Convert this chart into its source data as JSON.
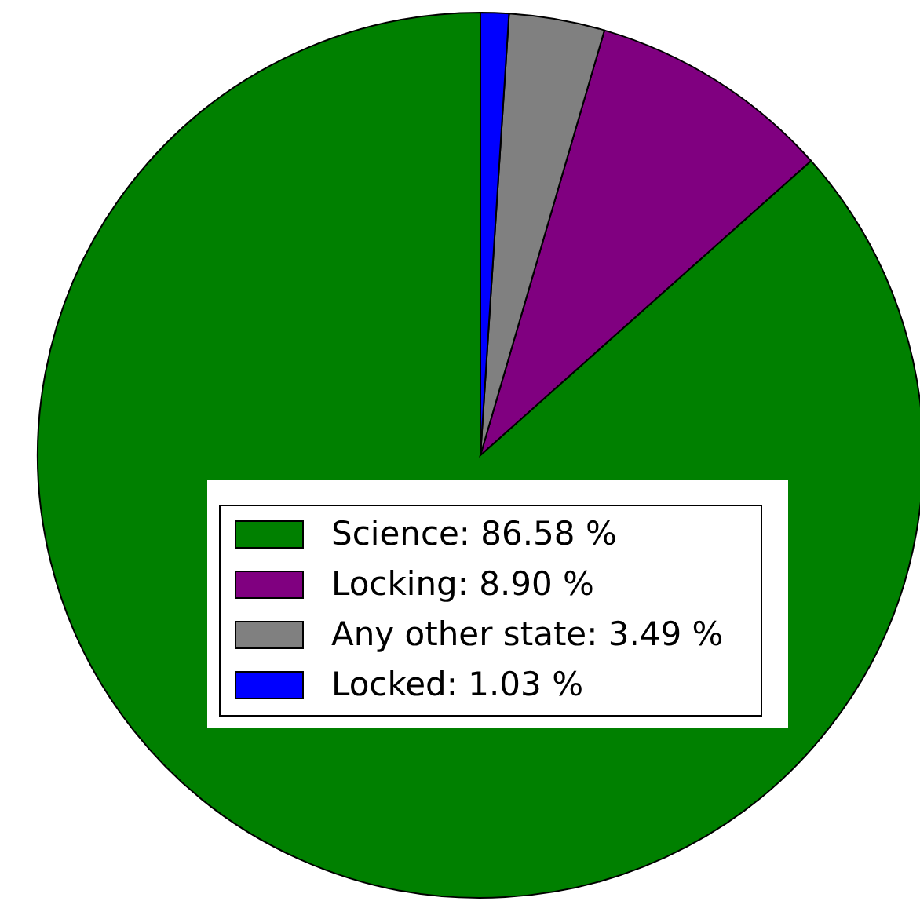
{
  "chart_data": {
    "type": "pie",
    "categories": [
      "Science: 86.58 %",
      "Locking: 8.90 %",
      "Any other state: 3.49 %",
      "Locked: 1.03 %"
    ],
    "values": [
      86.58,
      8.9,
      3.49,
      1.03
    ],
    "colors": [
      "#008000",
      "#800080",
      "#808080",
      "#0000ff"
    ],
    "legend": "center"
  }
}
